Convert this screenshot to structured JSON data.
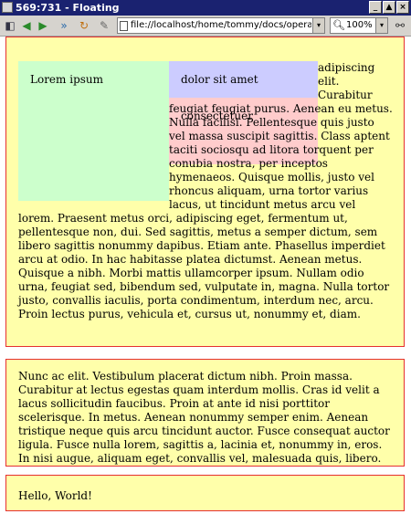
{
  "window": {
    "title": "569:731 - Floating",
    "buttons": [
      "_",
      "▲",
      "×"
    ]
  },
  "toolbar": {
    "icons": [
      "page-icon",
      "back-icon",
      "forward-icon",
      "fast-forward-icon",
      "reload-icon",
      "edit-icon"
    ],
    "address": "file://localhost/home/tommy/docs/opera/fc.htm",
    "zoom": "100%",
    "dropdown_glyph": "▾"
  },
  "content": {
    "box1": {
      "green_label": "Lorem ipsum",
      "blue_label": "dolor sit amet",
      "red_label": "consectetuer",
      "text": "adipiscing elit. Curabitur feugiat feugiat purus. Aenean eu metus. Nulla facilisi. Pellentesque quis justo vel massa suscipit sagittis. Class aptent taciti sociosqu ad litora torquent per conubia nostra, per inceptos hymenaeos. Quisque mollis, justo vel rhoncus aliquam, urna tortor varius lacus, ut tincidunt metus arcu vel lorem. Praesent metus orci, adipiscing eget, fermentum ut, pellentesque non, dui. Sed sagittis, metus a semper dictum, sem libero sagittis nonummy dapibus. Etiam ante. Phasellus imperdiet arcu at odio. In hac habitasse platea dictumst. Aenean metus. Quisque a nibh. Morbi mattis ullamcorper ipsum. Nullam odio urna, feugiat sed, bibendum sed, vulputate in, magna. Nulla tortor justo, convallis iaculis, porta condimentum, interdum nec, arcu. Proin lectus purus, vehicula et, cursus ut, nonummy et, diam."
    },
    "box2": {
      "text": "Nunc ac elit. Vestibulum placerat dictum nibh. Proin massa. Curabitur at lectus egestas quam interdum mollis. Cras id velit a lacus sollicitudin faucibus. Proin at ante id nisi porttitor scelerisque. In metus. Aenean nonummy semper enim. Aenean tristique neque quis arcu tincidunt auctor. Fusce consequat auctor ligula. Fusce nulla lorem, sagittis a, lacinia et, nonummy in, eros. In nisi augue, aliquam eget, convallis vel, malesuada quis, libero."
    },
    "box3": {
      "text": "Hello, World!"
    }
  },
  "colors": {
    "titlebar": "#1a2270",
    "box_bg": "#ffffaa",
    "box_border": "#e53030",
    "green": "#ccffcc",
    "blue": "#ccccff",
    "red": "#ffcccc"
  }
}
